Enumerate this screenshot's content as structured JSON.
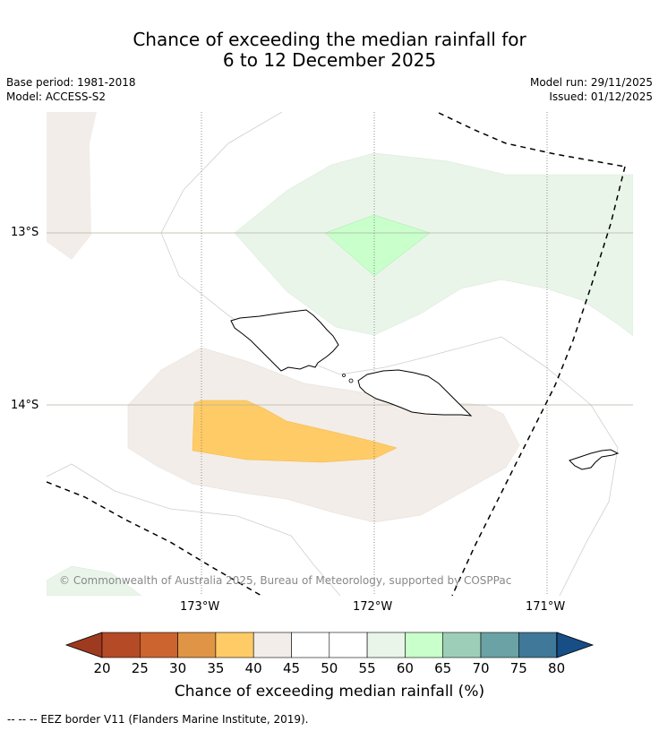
{
  "header": {
    "title_line1": "Chance of exceeding the median rainfall for",
    "title_line2": "6 to 12 December 2025",
    "base_period": "Base period: 1981-2018",
    "model": "Model: ACCESS-S2",
    "model_run": "Model run: 29/11/2025",
    "issued": "Issued: 01/12/2025"
  },
  "map": {
    "lat_labels": [
      "13°S",
      "14°S"
    ],
    "lon_labels": [
      "173°W",
      "172°W",
      "171°W"
    ],
    "copyright": "© Commonwealth of Australia 2025, Bureau of Meteorology, supported by COSPPac"
  },
  "colorbar": {
    "labels": [
      "20",
      "25",
      "30",
      "35",
      "40",
      "45",
      "50",
      "55",
      "60",
      "65",
      "70",
      "75",
      "80"
    ],
    "colors": [
      "#9e3a20",
      "#b54a26",
      "#cc6430",
      "#e09445",
      "#fecb66",
      "#f2ede8",
      "#ffffff",
      "#ffffff",
      "#eaf5ea",
      "#c8ffca",
      "#9dcfb8",
      "#6aa2a5",
      "#3f7898",
      "#174e86"
    ],
    "title": "Chance of exceeding median rainfall (%)"
  },
  "footer": {
    "eez_note": "--  --  -- EEZ border V11 (Flanders Marine Institute, 2019)."
  }
}
